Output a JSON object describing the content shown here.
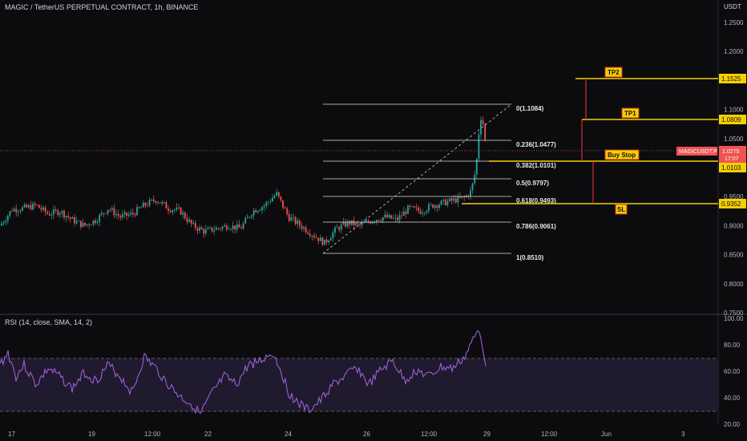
{
  "header": {
    "title": "MAGIC / TetherUS PERPETUAL CONTRACT, 1h, BINANCE",
    "currency": "USDT"
  },
  "rsi": {
    "title": "RSI (14, close, SMA, 14, 2)",
    "levels": [
      "100.00",
      "80.00",
      "60.00",
      "40.00",
      "20.00"
    ]
  },
  "price_axis": {
    "ticks": [
      "1.2500",
      "1.2000",
      "1.1500",
      "1.1000",
      "1.0500",
      "1.0000",
      "0.9500",
      "0.9000",
      "0.8500",
      "0.8000",
      "0.7500"
    ]
  },
  "time_axis": {
    "labels": [
      "17",
      "19",
      "12:00",
      "22",
      "24",
      "26",
      "12:00",
      "29",
      "12:00",
      "Jun",
      "3"
    ]
  },
  "fib_levels": [
    {
      "label": "0(1.1084)"
    },
    {
      "label": "0.236(1.0477)"
    },
    {
      "label": "0.382(1.0101)"
    },
    {
      "label": "0.5(0.9797)"
    },
    {
      "label": "0.618(0.9493)"
    },
    {
      "label": "0.786(0.9061)"
    },
    {
      "label": "1(0.8510)"
    }
  ],
  "targets": {
    "tp2": {
      "label": "TP2",
      "price": "1.1525"
    },
    "tp1": {
      "label": "TP1",
      "price": "1.0809"
    },
    "buy_stop": {
      "label": "Buy Stop",
      "price": "1.0103"
    },
    "sl": {
      "label": "SL",
      "price": "0.9352"
    }
  },
  "current_price": {
    "symbol": "MAGICUSDT.P",
    "price": "1.0275",
    "countdown": "17:07"
  },
  "colors": {
    "background": "#0c0c0e",
    "bull": "#26a69a",
    "bear": "#ef5350",
    "target_line": "#f5d000",
    "rsi_line": "#9c5fd6",
    "rsi_band": "#1f1a2e",
    "stem": "#d32f2f"
  },
  "chart_data": {
    "type": "candlestick",
    "title": "MAGIC / TetherUS PERPETUAL CONTRACT, 1h, BINANCE",
    "ylim": [
      0.75,
      1.25
    ],
    "series": [
      {
        "name": "close",
        "x": [
          "17",
          "19",
          "22",
          "24",
          "26",
          "29"
        ],
        "values": [
          0.915,
          0.905,
          0.92,
          0.93,
          0.905,
          1.0275
        ]
      }
    ],
    "annotations": [
      "0(1.1084)",
      "0.236(1.0477)",
      "0.382(1.0101)",
      "0.5(0.9797)",
      "0.618(0.9493)",
      "0.786(0.9061)",
      "1(0.8510)",
      "TP2 1.1525",
      "TP1 1.0809",
      "Buy Stop 1.0103",
      "SL 0.9352"
    ]
  }
}
